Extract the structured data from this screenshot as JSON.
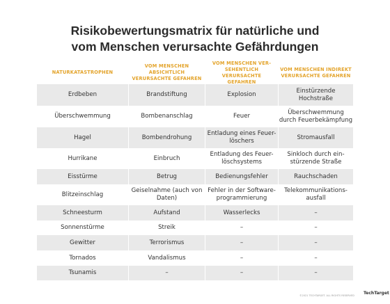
{
  "header": {
    "title": "Risikobewertungsmatrix für natürliche und\nvom Menschen verursachte Gefährdungen"
  },
  "table": {
    "columns": [
      "NATURKATASTROPHEN",
      "VOM MENSCHEN\nABSICHTLICH\nVERURSACHTE GEFAHREN",
      "VOM MENSCHEN VER-\nSEHENTLICH VERURSACHTE\nGEFAHREN",
      "VOM MENSCHEN INDIREKT\nVERURSACHTE GEFAHREN"
    ],
    "rows": [
      [
        "Erdbeben",
        "Brandstiftung",
        "Explosion",
        "Einstürzende\nHochstraße"
      ],
      [
        "Überschwemmung",
        "Bombenanschlag",
        "Feuer",
        "Überschwemmung\ndurch Feuerbekämpfung"
      ],
      [
        "Hagel",
        "Bombendrohung",
        "Entladung eines Feuer-\nlöschers",
        "Stromausfall"
      ],
      [
        "Hurrikane",
        "Einbruch",
        "Entladung des Feuer-\nlöschsystems",
        "Sinkloch durch ein-\nstürzende Straße"
      ],
      [
        "Eisstürme",
        "Betrug",
        "Bedienungsfehler",
        "Rauchschaden"
      ],
      [
        "Blitzeinschlag",
        "Geiselnahme (auch von\nDaten)",
        "Fehler in der Software-\nprogrammierung",
        "Telekommunikations-\nausfall"
      ],
      [
        "Schneesturm",
        "Aufstand",
        "Wasserlecks",
        "–"
      ],
      [
        "Sonnenstürme",
        "Streik",
        "–",
        "–"
      ],
      [
        "Gewitter",
        "Terrorismus",
        "–",
        "–"
      ],
      [
        "Tornados",
        "Vandalismus",
        "–",
        "–"
      ],
      [
        "Tsunamis",
        "–",
        "–",
        "–"
      ]
    ]
  },
  "footer": {
    "copyright": "©2021 TECHTARGET. ALL RIGHTS RESERVED",
    "logo": "TechTarget"
  }
}
